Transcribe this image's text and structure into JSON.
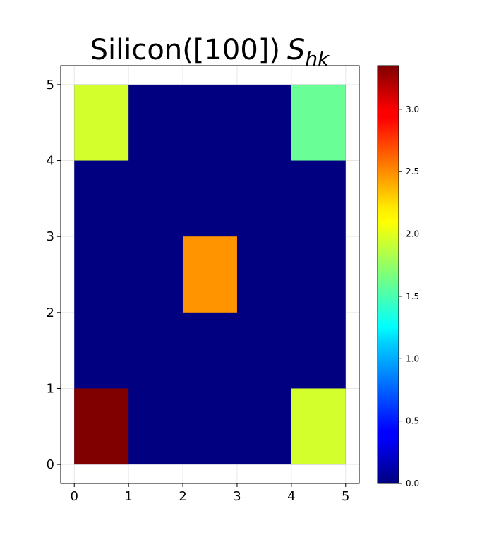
{
  "chart_data": {
    "type": "heatmap",
    "title": "Silicon([100])",
    "title_symbol": "S",
    "title_subscript": "hk",
    "xlabel": "",
    "ylabel": "",
    "x_ticks": [
      "0",
      "1",
      "2",
      "3",
      "4",
      "5"
    ],
    "y_ticks": [
      "0",
      "1",
      "2",
      "3",
      "4",
      "5"
    ],
    "xlim": [
      -0.25,
      5.25
    ],
    "ylim": [
      -0.25,
      5.25
    ],
    "grid": true,
    "colormap": "jet",
    "colorbar": {
      "range": [
        0.0,
        3.35
      ],
      "ticks": [
        "0.0",
        "0.5",
        "1.0",
        "1.5",
        "2.0",
        "2.5",
        "3.0"
      ],
      "tick_values": [
        0.0,
        0.5,
        1.0,
        1.5,
        2.0,
        2.5,
        3.0
      ],
      "placement": "right"
    },
    "cells": [
      {
        "h": 0,
        "k": 0,
        "value": 3.35
      },
      {
        "h": 4,
        "k": 0,
        "value": 1.95
      },
      {
        "h": 2,
        "k": 2,
        "value": 2.45
      },
      {
        "h": 0,
        "k": 4,
        "value": 1.95
      },
      {
        "h": 4,
        "k": 4,
        "value": 1.6
      }
    ],
    "background_value": 0.0
  }
}
